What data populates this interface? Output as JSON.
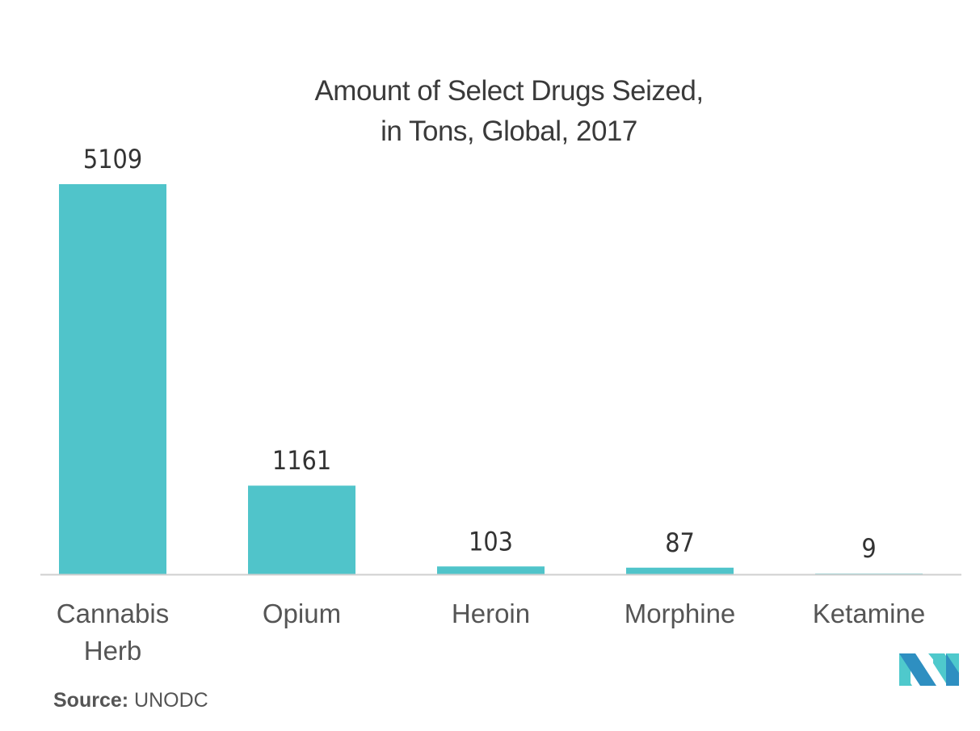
{
  "chart_data": {
    "type": "bar",
    "title_line1": "Amount of Select Drugs Seized,",
    "title_line2": "in Tons, Global, 2017",
    "categories": [
      [
        "Cannabis",
        "Herb"
      ],
      [
        "Opium"
      ],
      [
        "Heroin"
      ],
      [
        "Morphine"
      ],
      [
        "Ketamine"
      ]
    ],
    "values": [
      5109,
      1161,
      103,
      87,
      9
    ],
    "xlabel": "",
    "ylabel": "",
    "ylim": [
      0,
      5109
    ],
    "grid": false,
    "bar_color": "#50c4ca"
  },
  "source": {
    "label": "Source:",
    "value": "UNODC"
  },
  "logo": {
    "text": "MN"
  }
}
